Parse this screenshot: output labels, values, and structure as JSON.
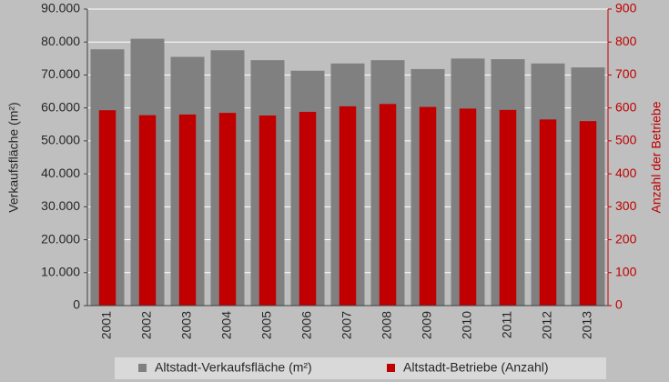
{
  "chart_data": {
    "type": "bar",
    "categories": [
      "2001",
      "2002",
      "2003",
      "2004",
      "2005",
      "2006",
      "2007",
      "2008",
      "2009",
      "2010",
      "2011",
      "2012",
      "2013"
    ],
    "series": [
      {
        "name": "Altstadt-Verkaufsfläche (m²)",
        "color": "#808080",
        "values": [
          77800,
          81000,
          75500,
          77500,
          74500,
          71300,
          73500,
          74500,
          71800,
          75000,
          74800,
          73500,
          72300
        ]
      },
      {
        "name": "Altstadt-Betriebe (Anzahl)",
        "color": "#c00000",
        "axis": "y2",
        "values": [
          593,
          578,
          580,
          585,
          577,
          588,
          605,
          612,
          603,
          598,
          594,
          565,
          560
        ]
      }
    ],
    "ylabel": "Verkaufsfläche (m²)",
    "y2label": "Anzahl der Betriebe",
    "ylim": [
      0,
      90000
    ],
    "yticks": [
      0,
      {
        "value": 10000,
        "label": "10.000"
      },
      {
        "value": 20000,
        "label": "20.000"
      },
      {
        "value": 30000,
        "label": "30.000"
      },
      {
        "value": 40000,
        "label": "40.000"
      },
      {
        "value": 50000,
        "label": "50.000"
      },
      {
        "value": 60000,
        "label": "60.000"
      },
      {
        "value": 70000,
        "label": "70.000"
      },
      {
        "value": 80000,
        "label": "80.000"
      },
      {
        "value": 90000,
        "label": "90.000"
      }
    ],
    "y2lim": [
      0,
      900
    ],
    "y2ticks": [
      0,
      100,
      200,
      300,
      400,
      500,
      600,
      700,
      800,
      900
    ],
    "grid": true,
    "legend": "bottom"
  }
}
